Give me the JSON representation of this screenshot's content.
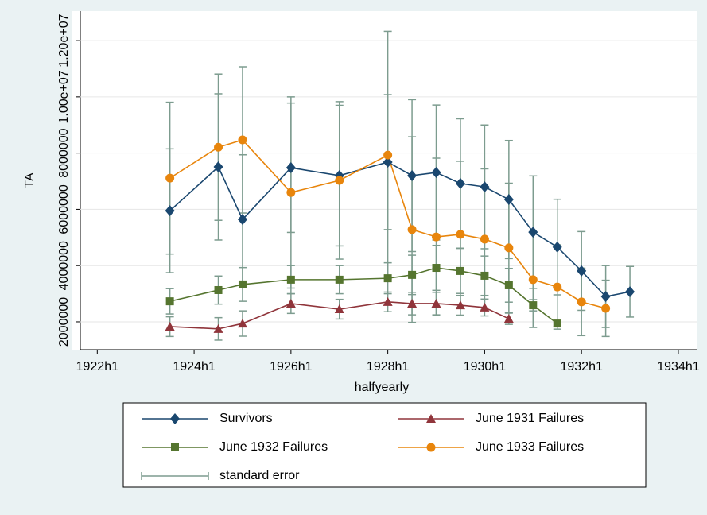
{
  "chart_data": {
    "type": "line",
    "x_label": "halfyearly",
    "y_label": "TA",
    "xlim": [
      1921.65,
      1934.28
    ],
    "ylim": [
      1010000,
      13020000
    ],
    "xticks": [
      {
        "value": 1922,
        "label": "1922h1"
      },
      {
        "value": 1924,
        "label": "1924h1"
      },
      {
        "value": 1926,
        "label": "1926h1"
      },
      {
        "value": 1928,
        "label": "1928h1"
      },
      {
        "value": 1930,
        "label": "1930h1"
      },
      {
        "value": 1932,
        "label": "1932h1"
      },
      {
        "value": 1934,
        "label": "1934h1"
      }
    ],
    "yticks": [
      2000000,
      4000000,
      6000000,
      8000000,
      {
        "value": 10000000,
        "label": "1.00e+07"
      },
      {
        "value": 12000000,
        "label": "1.20e+07"
      }
    ],
    "grid": true,
    "error_name": "standard error",
    "error_color": "#7d9c8f",
    "series": [
      {
        "name": "Survivors",
        "color": "#1a476f",
        "marker": "diamond",
        "x": [
          1923.5,
          1924.5,
          1925,
          1926,
          1927,
          1928,
          1928.5,
          1929,
          1929.5,
          1930,
          1930.5,
          1931,
          1931.5,
          1932,
          1932.5,
          1933
        ],
        "values": [
          5950000,
          7510000,
          5640000,
          7480000,
          7200000,
          7680000,
          7200000,
          7310000,
          6920000,
          6800000,
          6350000,
          5190000,
          4660000,
          3810000,
          2900000,
          3070000
        ],
        "errors": [
          2200000,
          2600000,
          2300000,
          2300000,
          2500000,
          2400000,
          2700000,
          2400000,
          2300000,
          2200000,
          2100000,
          2000000,
          1700000,
          1400000,
          1100000,
          900000
        ]
      },
      {
        "name": "June 1931 Failures",
        "color": "#90353b",
        "marker": "triangle",
        "x": [
          1923.5,
          1924.5,
          1925,
          1926,
          1927,
          1928,
          1928.5,
          1929,
          1929.5,
          1930,
          1930.5
        ],
        "values": [
          1830000,
          1750000,
          1940000,
          2650000,
          2450000,
          2710000,
          2650000,
          2650000,
          2590000,
          2510000,
          2110000
        ],
        "errors": [
          350000,
          400000,
          450000,
          350000,
          350000,
          350000,
          400000,
          400000,
          350000,
          300000,
          200000
        ]
      },
      {
        "name": "June 1932 Failures",
        "color": "#55752f",
        "marker": "square",
        "x": [
          1923.5,
          1924.5,
          1925,
          1926,
          1927,
          1928,
          1928.5,
          1929,
          1929.5,
          1930,
          1930.5,
          1931,
          1931.5
        ],
        "values": [
          2730000,
          3130000,
          3330000,
          3500000,
          3500000,
          3550000,
          3670000,
          3920000,
          3810000,
          3640000,
          3300000,
          2590000,
          1940000
        ],
        "errors": [
          450000,
          500000,
          600000,
          500000,
          500000,
          550000,
          700000,
          800000,
          800000,
          700000,
          600000,
          200000,
          100000
        ]
      },
      {
        "name": "June 1933 Failures",
        "color": "#e8850c",
        "marker": "circle",
        "x": [
          1923.5,
          1924.5,
          1925,
          1926,
          1927,
          1928,
          1928.5,
          1929,
          1929.5,
          1930,
          1930.5,
          1931,
          1931.5,
          1932,
          1932.5
        ],
        "values": [
          7110000,
          8210000,
          8470000,
          6600000,
          7030000,
          7930000,
          5280000,
          5020000,
          5110000,
          4940000,
          4630000,
          3500000,
          3240000,
          2710000,
          2480000
        ],
        "errors": [
          2700000,
          2600000,
          2600000,
          3400000,
          2800000,
          4400000,
          3300000,
          2800000,
          2600000,
          2500000,
          2300000,
          1700000,
          1500000,
          1200000,
          1000000
        ]
      }
    ]
  }
}
